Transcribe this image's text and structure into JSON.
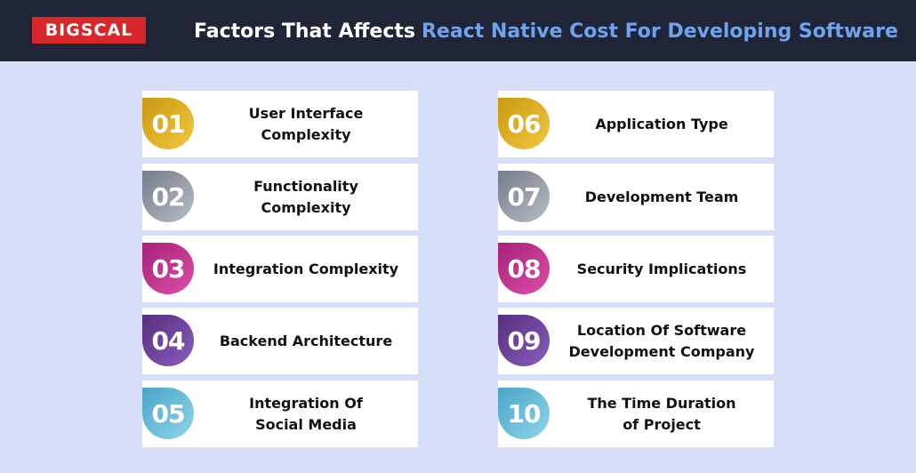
{
  "header": {
    "logo_text": "BIGSCAL",
    "title_main": "Factors That Affects",
    "title_accent": "React Native Cost For Developing Software"
  },
  "colors": {
    "header_bg": "#1f2436",
    "page_bg": "#d6def8",
    "logo_red": "#d8262a",
    "title_accent": "#6fa3ee"
  },
  "factors": [
    {
      "number": "01",
      "label": "User Interface\nComplexity",
      "color": "gold"
    },
    {
      "number": "02",
      "label": "Functionality\nComplexity",
      "color": "gray"
    },
    {
      "number": "03",
      "label": "Integration Complexity",
      "color": "magenta"
    },
    {
      "number": "04",
      "label": "Backend Architecture",
      "color": "purple"
    },
    {
      "number": "05",
      "label": "Integration Of\nSocial Media",
      "color": "light-blue"
    },
    {
      "number": "06",
      "label": "Application Type",
      "color": "gold"
    },
    {
      "number": "07",
      "label": "Development Team",
      "color": "gray"
    },
    {
      "number": "08",
      "label": "Security Implications",
      "color": "magenta"
    },
    {
      "number": "09",
      "label": "Location Of Software\nDevelopment Company",
      "color": "purple"
    },
    {
      "number": "10",
      "label": "The Time Duration\nof Project",
      "color": "light-blue"
    }
  ]
}
